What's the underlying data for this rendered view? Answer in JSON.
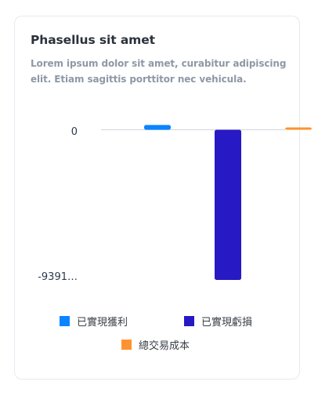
{
  "card": {
    "title": "Phasellus sit amet",
    "subtitle": "Lorem ipsum dolor sit amet, curabitur adipiscing elit. Etiam sagittis porttitor nec vehicula."
  },
  "chart_data": {
    "type": "bar",
    "y_tick_labels": [
      "0",
      "-9391…"
    ],
    "ylim": [
      -9391,
      0
    ],
    "grid": true,
    "legend_position": "bottom",
    "series": [
      {
        "name": "已實現獲利",
        "color": "#0a84ff",
        "value": 300
      },
      {
        "name": "已實現虧損",
        "color": "#2719c4",
        "value": -9391
      },
      {
        "name": "總交易成本",
        "color": "#ff9230",
        "value": 100
      }
    ]
  }
}
